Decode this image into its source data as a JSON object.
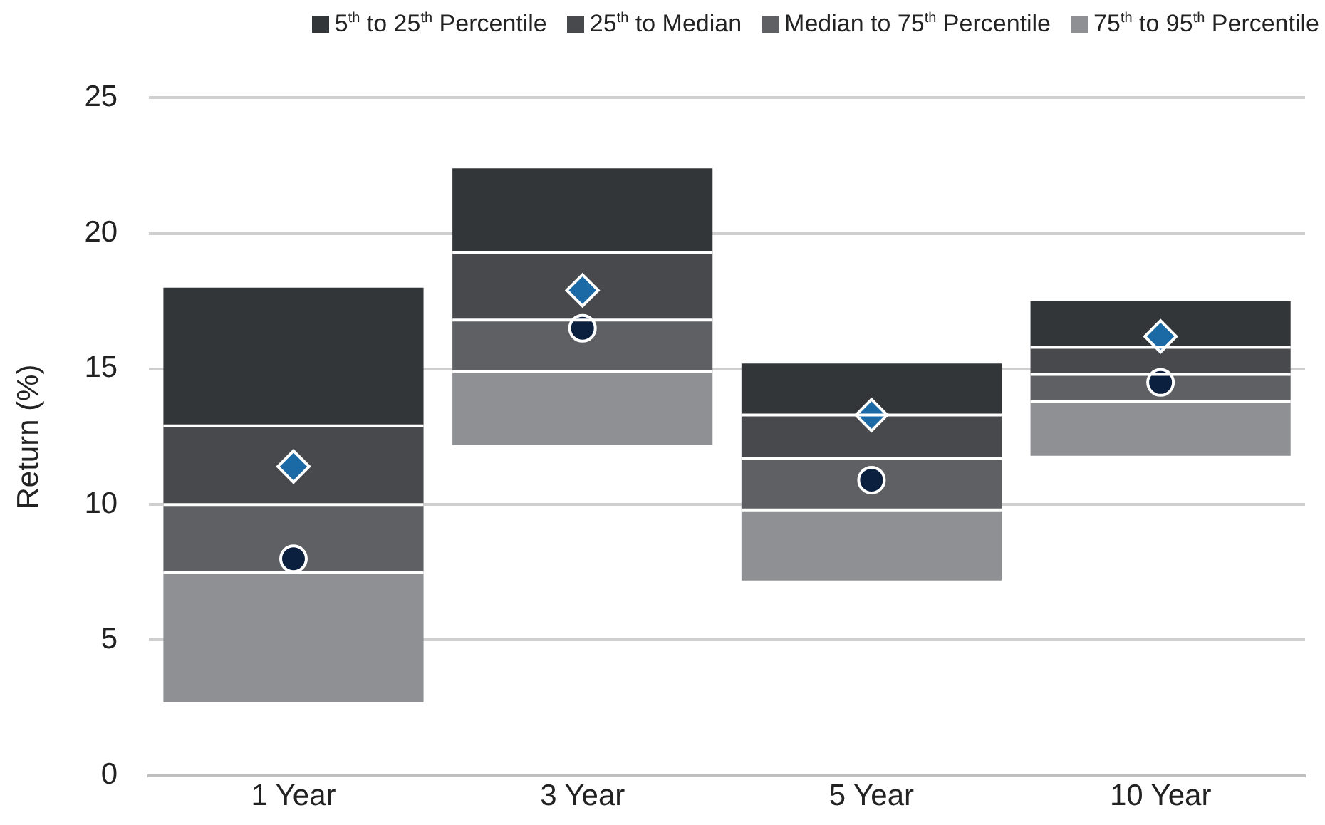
{
  "chart_data": {
    "type": "bar",
    "ylabel": "Return (%)",
    "categories": [
      "1 Year",
      "3 Year",
      "5 Year",
      "10 Year"
    ],
    "series": [
      {
        "name": "75$^{th}$ to 95$^{th}$ Percentile",
        "color": "#8e9093",
        "base": [
          2.7,
          12.2,
          7.2,
          11.8
        ],
        "values": [
          4.8,
          2.7,
          2.6,
          2.0
        ]
      },
      {
        "name": "Median to 75$^{th}$ Percentile",
        "color": "#5e6063",
        "base": [
          7.5,
          14.9,
          9.8,
          13.8
        ],
        "values": [
          2.5,
          1.9,
          1.9,
          1.0
        ]
      },
      {
        "name": "25$^{th}$ to Median",
        "color": "#48494c",
        "base": [
          10.0,
          16.8,
          11.7,
          14.8
        ],
        "values": [
          2.9,
          2.5,
          1.6,
          1.0
        ]
      },
      {
        "name": "5$^{th}$ to 25$^{th}$ Percentile",
        "color": "#333639",
        "base": [
          12.9,
          19.3,
          13.3,
          15.8
        ],
        "values": [
          5.1,
          3.1,
          1.9,
          1.7
        ]
      },
      {
        "type": "scatter",
        "marker": "circle",
        "color": "#0b1f3f",
        "x": [
          "1 Year",
          "3 Year",
          "5 Year",
          "10 Year"
        ],
        "values": [
          8.0,
          16.5,
          10.9,
          14.5
        ]
      },
      {
        "type": "scatter",
        "marker": "diamond",
        "color": "#1c6aa5",
        "x": [
          "1 Year",
          "3 Year",
          "5 Year",
          "10 Year"
        ],
        "values": [
          11.4,
          17.9,
          13.3,
          16.2
        ]
      }
    ],
    "ylim": [
      0,
      25
    ],
    "yticks": [
      0,
      5,
      10,
      15,
      20,
      25
    ],
    "grid": "y",
    "legend": "top"
  }
}
